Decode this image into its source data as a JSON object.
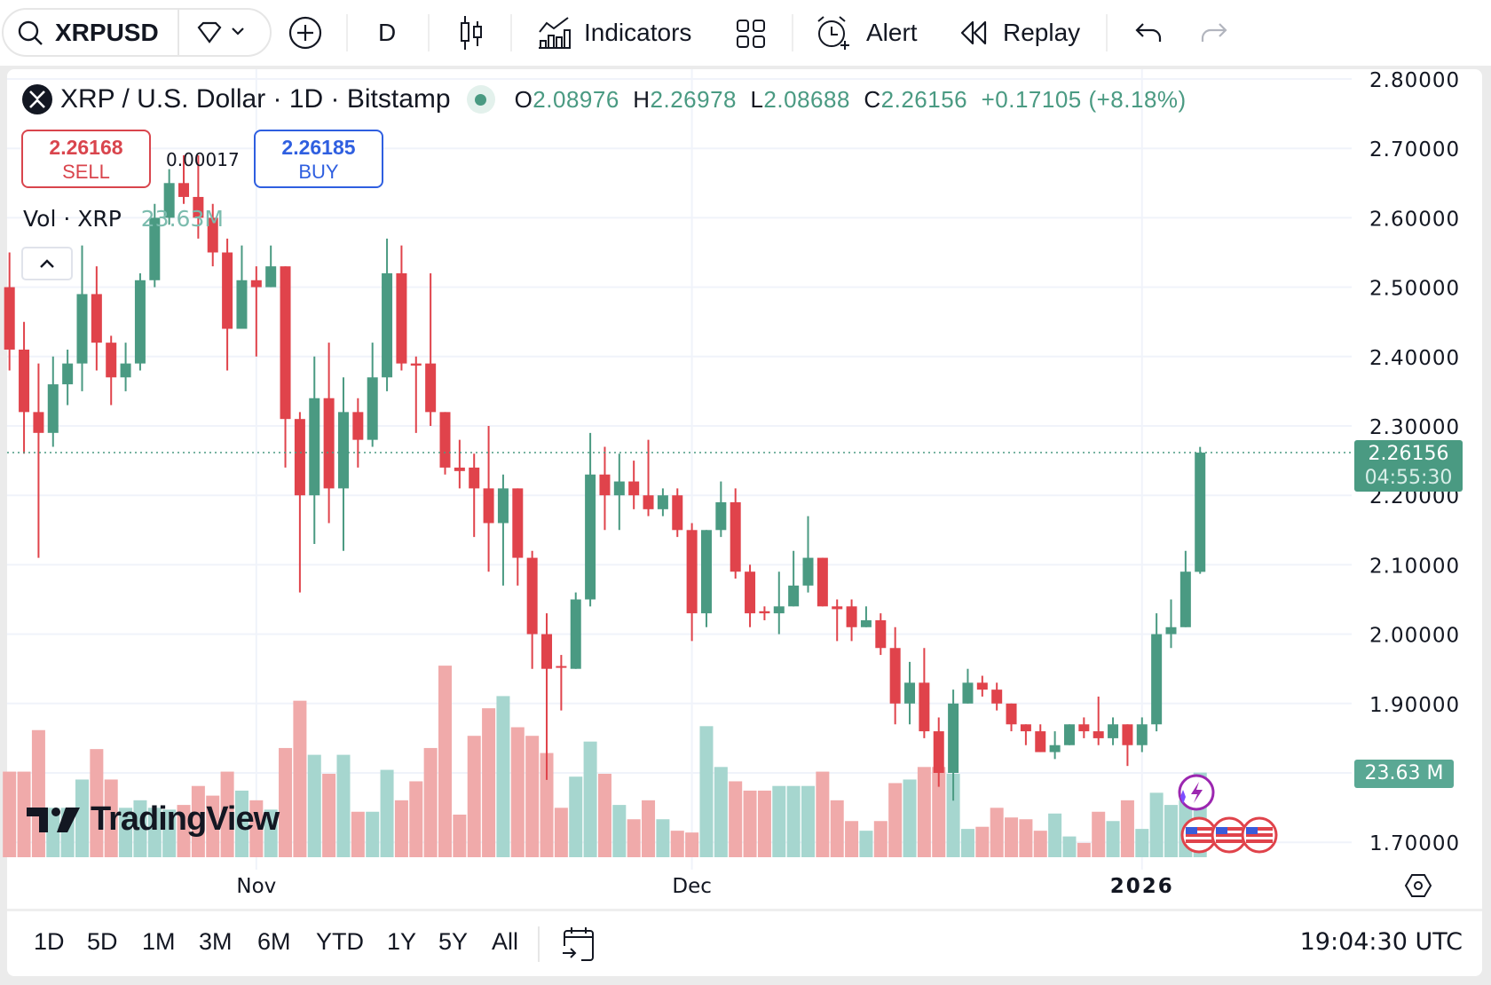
{
  "toolbar": {
    "symbol": "XRPUSD",
    "interval": "D",
    "indicators_label": "Indicators",
    "alert_label": "Alert",
    "replay_label": "Replay"
  },
  "legend": {
    "title": "XRP / U.S. Dollar · 1D · Bitstamp",
    "o_label": "O",
    "o": "2.08976",
    "h_label": "H",
    "h": "2.26978",
    "l_label": "L",
    "l": "2.08688",
    "c_label": "C",
    "c": "2.26156",
    "change": "+0.17105 (+8.18%)"
  },
  "trade": {
    "sell_price": "2.26168",
    "sell_label": "SELL",
    "buy_price": "2.26185",
    "buy_label": "BUY",
    "spread": "0.00017"
  },
  "volume_legend": {
    "label": "Vol · XRP",
    "value": "23.63M"
  },
  "price_axis": {
    "ticks": [
      "2.80000",
      "2.70000",
      "2.60000",
      "2.50000",
      "2.40000",
      "2.30000",
      "2.20000",
      "2.10000",
      "2.00000",
      "1.90000",
      "1.70000"
    ],
    "last_price": "2.26156",
    "countdown": "04:55:30",
    "volume_label": "23.63 M"
  },
  "time_axis": {
    "ticks": [
      "Nov",
      "Dec",
      "2026"
    ]
  },
  "bottom": {
    "ranges": [
      "1D",
      "5D",
      "1M",
      "3M",
      "6M",
      "YTD",
      "1Y",
      "5Y",
      "All"
    ],
    "clock": "19:04:30 UTC"
  },
  "logo": {
    "text": "TradingView"
  },
  "colors": {
    "up": "#4a9a82",
    "down": "#e0434b",
    "up_volume": "#a6d6cf",
    "down_volume": "#f0aaaa",
    "buy": "#2f5fe0",
    "sell": "#d9454d"
  },
  "chart_data": {
    "type": "candlestick",
    "title": "XRP / U.S. Dollar · 1D · Bitstamp",
    "ylim": [
      1.7,
      2.8
    ],
    "y_ticks": [
      2.8,
      2.7,
      2.6,
      2.5,
      2.4,
      2.3,
      2.2,
      2.1,
      2.0,
      1.9,
      1.7
    ],
    "x_tick_labels": [
      "Nov",
      "Dec",
      "2026"
    ],
    "grid": true,
    "ohlc": [
      [
        2.5,
        2.55,
        2.38,
        2.41
      ],
      [
        2.41,
        2.45,
        2.26,
        2.32
      ],
      [
        2.32,
        2.39,
        2.11,
        2.29
      ],
      [
        2.29,
        2.4,
        2.27,
        2.36
      ],
      [
        2.36,
        2.41,
        2.33,
        2.39
      ],
      [
        2.39,
        2.56,
        2.35,
        2.49
      ],
      [
        2.49,
        2.53,
        2.38,
        2.42
      ],
      [
        2.42,
        2.43,
        2.33,
        2.37
      ],
      [
        2.37,
        2.42,
        2.35,
        2.39
      ],
      [
        2.39,
        2.52,
        2.38,
        2.51
      ],
      [
        2.51,
        2.62,
        2.5,
        2.6
      ],
      [
        2.6,
        2.67,
        2.59,
        2.65
      ],
      [
        2.65,
        2.69,
        2.62,
        2.63
      ],
      [
        2.63,
        2.69,
        2.57,
        2.6
      ],
      [
        2.6,
        2.62,
        2.53,
        2.55
      ],
      [
        2.55,
        2.57,
        2.38,
        2.44
      ],
      [
        2.44,
        2.56,
        2.44,
        2.51
      ],
      [
        2.51,
        2.53,
        2.4,
        2.5
      ],
      [
        2.5,
        2.56,
        2.5,
        2.53
      ],
      [
        2.53,
        2.53,
        2.24,
        2.31
      ],
      [
        2.31,
        2.32,
        2.06,
        2.2
      ],
      [
        2.2,
        2.4,
        2.13,
        2.34
      ],
      [
        2.34,
        2.42,
        2.16,
        2.21
      ],
      [
        2.21,
        2.37,
        2.12,
        2.32
      ],
      [
        2.32,
        2.34,
        2.24,
        2.28
      ],
      [
        2.28,
        2.42,
        2.27,
        2.37
      ],
      [
        2.37,
        2.57,
        2.35,
        2.52
      ],
      [
        2.52,
        2.56,
        2.38,
        2.39
      ],
      [
        2.39,
        2.4,
        2.29,
        2.387
      ],
      [
        2.39,
        2.52,
        2.3,
        2.32
      ],
      [
        2.32,
        2.32,
        2.23,
        2.24
      ],
      [
        2.24,
        2.28,
        2.21,
        2.235
      ],
      [
        2.24,
        2.26,
        2.14,
        2.21
      ],
      [
        2.21,
        2.3,
        2.09,
        2.16
      ],
      [
        2.16,
        2.23,
        2.07,
        2.21
      ],
      [
        2.21,
        2.21,
        2.07,
        2.11
      ],
      [
        2.11,
        2.12,
        1.95,
        2.0
      ],
      [
        2.0,
        2.03,
        1.79,
        1.95
      ],
      [
        1.954,
        1.97,
        1.89,
        1.952
      ],
      [
        1.95,
        2.06,
        1.95,
        2.05
      ],
      [
        2.05,
        2.29,
        2.04,
        2.23
      ],
      [
        2.23,
        2.27,
        2.15,
        2.2
      ],
      [
        2.2,
        2.26,
        2.15,
        2.22
      ],
      [
        2.22,
        2.25,
        2.18,
        2.2
      ],
      [
        2.2,
        2.28,
        2.17,
        2.18
      ],
      [
        2.18,
        2.21,
        2.17,
        2.2
      ],
      [
        2.2,
        2.21,
        2.14,
        2.15
      ],
      [
        2.15,
        2.16,
        1.99,
        2.03
      ],
      [
        2.03,
        2.15,
        2.01,
        2.15
      ],
      [
        2.15,
        2.22,
        2.14,
        2.19
      ],
      [
        2.19,
        2.21,
        2.08,
        2.09
      ],
      [
        2.09,
        2.1,
        2.01,
        2.03
      ],
      [
        2.033,
        2.04,
        2.02,
        2.03
      ],
      [
        2.03,
        2.09,
        2.0,
        2.04
      ],
      [
        2.04,
        2.12,
        2.04,
        2.07
      ],
      [
        2.07,
        2.17,
        2.06,
        2.11
      ],
      [
        2.11,
        2.11,
        2.04,
        2.04
      ],
      [
        2.04,
        2.05,
        1.99,
        2.036
      ],
      [
        2.04,
        2.05,
        1.99,
        2.01
      ],
      [
        2.01,
        2.04,
        2.01,
        2.02
      ],
      [
        2.02,
        2.03,
        1.97,
        1.98
      ],
      [
        1.98,
        2.01,
        1.87,
        1.9
      ],
      [
        1.9,
        1.96,
        1.87,
        1.93
      ],
      [
        1.93,
        1.98,
        1.85,
        1.86
      ],
      [
        1.86,
        1.88,
        1.78,
        1.8
      ],
      [
        1.8,
        1.92,
        1.76,
        1.9
      ],
      [
        1.9,
        1.95,
        1.9,
        1.93
      ],
      [
        1.93,
        1.94,
        1.91,
        1.92
      ],
      [
        1.92,
        1.93,
        1.89,
        1.9
      ],
      [
        1.9,
        1.9,
        1.86,
        1.87
      ],
      [
        1.87,
        1.87,
        1.84,
        1.86
      ],
      [
        1.86,
        1.87,
        1.83,
        1.83
      ],
      [
        1.83,
        1.86,
        1.82,
        1.84
      ],
      [
        1.84,
        1.87,
        1.84,
        1.87
      ],
      [
        1.87,
        1.88,
        1.85,
        1.86
      ],
      [
        1.86,
        1.91,
        1.84,
        1.85
      ],
      [
        1.85,
        1.88,
        1.84,
        1.87
      ],
      [
        1.87,
        1.87,
        1.81,
        1.84
      ],
      [
        1.84,
        1.88,
        1.83,
        1.87
      ],
      [
        1.87,
        2.03,
        1.86,
        2.0
      ],
      [
        2.0,
        2.05,
        1.98,
        2.01
      ],
      [
        2.01,
        2.12,
        2.01,
        2.09
      ],
      [
        2.08976,
        2.26978,
        2.08688,
        2.26156
      ]
    ],
    "volume_millions": [
      23.9,
      23.9,
      35.5,
      13.8,
      13.8,
      21.7,
      30.2,
      21.7,
      13.8,
      15.9,
      13.8,
      13.3,
      14.6,
      19.9,
      17.2,
      23.9,
      18.6,
      15.9,
      13.3,
      30.5,
      43.7,
      28.6,
      23.3,
      28.6,
      12.7,
      12.7,
      24.4,
      15.9,
      21.2,
      30.5,
      53.5,
      11.9,
      33.9,
      41.6,
      45.0,
      36.3,
      33.9,
      29.1,
      13.8,
      22.5,
      32.3,
      23.3,
      14.6,
      10.6,
      15.9,
      10.6,
      7.4,
      6.9,
      36.6,
      25.2,
      21.2,
      18.6,
      18.6,
      19.9,
      19.9,
      19.9,
      23.9,
      15.9,
      10.1,
      7.4,
      10.1,
      20.7,
      21.7,
      25.2,
      25.2,
      23.3,
      7.9,
      8.5,
      13.8,
      11.1,
      10.6,
      7.4,
      12.2,
      5.8,
      4.0,
      12.7,
      10.1,
      15.9,
      7.9,
      18.0,
      14.6,
      15.9,
      23.63
    ]
  }
}
